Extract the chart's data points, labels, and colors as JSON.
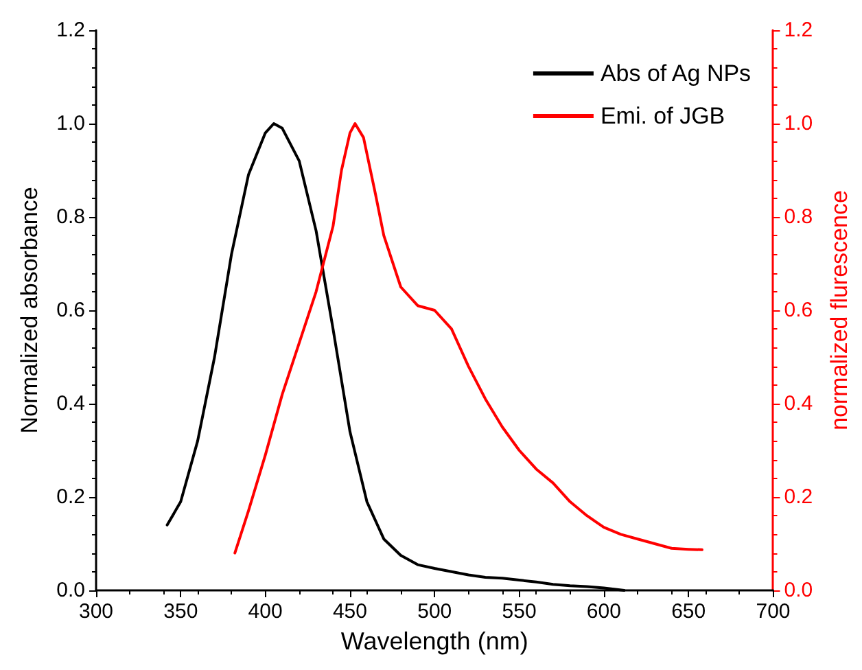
{
  "chart_data": {
    "type": "line",
    "xlabel": "Wavelength (nm)",
    "ylabel": "Normalized absorbance",
    "y2label": "normalized flurescence",
    "xlim": [
      300,
      700
    ],
    "xticks": [
      300,
      350,
      400,
      450,
      500,
      550,
      600,
      650,
      700
    ],
    "ylim": [
      0,
      1.2
    ],
    "yticks": [
      {
        "value": 0,
        "label": "0.0"
      },
      0.2,
      0.4,
      0.6,
      0.8,
      {
        "value": 1,
        "label": "1.0"
      },
      1.2
    ],
    "y2lim": [
      0,
      1.2
    ],
    "y2ticks": [
      {
        "value": 0,
        "label": "0.0"
      },
      0.2,
      0.4,
      0.6,
      0.8,
      {
        "value": 1,
        "label": "1.0"
      },
      1.2
    ],
    "grid": false,
    "legend": "top right",
    "marker": "none",
    "line_style": "solid",
    "series": [
      {
        "name": "Abs of Ag NPs",
        "color": "#000000",
        "x": [
          342,
          350,
          360,
          370,
          380,
          390,
          400,
          405,
          410,
          420,
          430,
          440,
          450,
          460,
          470,
          480,
          490,
          500,
          510,
          520,
          530,
          540,
          550,
          560,
          570,
          580,
          590,
          600,
          612
        ],
        "values": [
          0.14,
          0.19,
          0.32,
          0.5,
          0.72,
          0.89,
          0.98,
          1.0,
          0.99,
          0.92,
          0.77,
          0.56,
          0.34,
          0.19,
          0.11,
          0.075,
          0.055,
          0.047,
          0.04,
          0.033,
          0.028,
          0.026,
          0.022,
          0.018,
          0.013,
          0.01,
          0.008,
          0.005,
          0.0
        ]
      },
      {
        "name": "Emi. of JGB",
        "color": "#ff0000",
        "axis": "y2",
        "x": [
          382,
          390,
          400,
          410,
          420,
          430,
          440,
          445,
          450,
          453,
          458,
          465,
          470,
          480,
          490,
          500,
          510,
          520,
          530,
          540,
          550,
          560,
          570,
          580,
          590,
          600,
          610,
          620,
          630,
          640,
          650,
          658
        ],
        "values": [
          0.08,
          0.17,
          0.29,
          0.42,
          0.53,
          0.64,
          0.78,
          0.9,
          0.98,
          1.0,
          0.97,
          0.85,
          0.76,
          0.65,
          0.61,
          0.6,
          0.56,
          0.48,
          0.41,
          0.35,
          0.3,
          0.26,
          0.23,
          0.19,
          0.16,
          0.135,
          0.12,
          0.11,
          0.1,
          0.09,
          0.088,
          0.087
        ]
      }
    ]
  }
}
